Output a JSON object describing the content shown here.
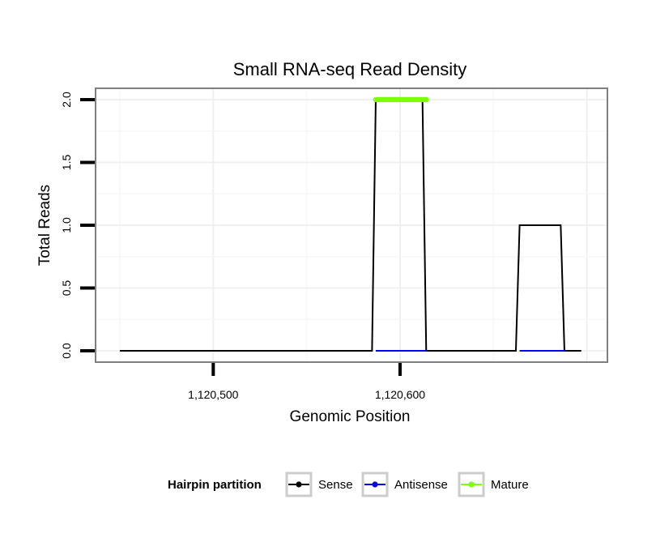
{
  "chart_data": {
    "type": "line",
    "title": "Small RNA-seq Read Density",
    "xlabel": "Genomic Position",
    "ylabel": "Total Reads",
    "xlim": [
      1120437,
      1120711
    ],
    "ylim": [
      -0.09,
      2.09
    ],
    "x_ticks": [
      1120500,
      1120600
    ],
    "x_tick_labels": [
      "1,120,500",
      "1,120,600"
    ],
    "y_ticks": [
      0.0,
      0.5,
      1.0,
      1.5,
      2.0
    ],
    "y_tick_labels": [
      "0.0",
      "0.5",
      "1.0",
      "1.5",
      "2.0"
    ],
    "grid": true,
    "legend": {
      "title": "Hairpin partition",
      "position": "bottom",
      "entries": [
        "Sense",
        "Antisense",
        "Mature"
      ]
    },
    "series": [
      {
        "name": "Sense",
        "color": "#000000",
        "x": [
          1120450,
          1120585,
          1120587,
          1120612,
          1120614,
          1120662,
          1120664,
          1120686,
          1120688,
          1120697
        ],
        "y": [
          0,
          0,
          2,
          2,
          0,
          0,
          1,
          1,
          0,
          0
        ]
      },
      {
        "name": "Antisense",
        "color": "#0000ff",
        "x": [
          1120587,
          1120614,
          1120664,
          1120688
        ],
        "y": [
          0,
          0,
          0,
          0
        ],
        "segments": [
          [
            0,
            1
          ],
          [
            2,
            3
          ]
        ]
      },
      {
        "name": "Mature",
        "color": "#7fff00",
        "x": [
          1120587,
          1120588,
          1120589,
          1120590,
          1120591,
          1120592,
          1120593,
          1120594,
          1120595,
          1120596,
          1120597,
          1120598,
          1120599,
          1120600,
          1120601,
          1120602,
          1120603,
          1120604,
          1120605,
          1120606,
          1120607,
          1120608,
          1120609,
          1120610,
          1120611,
          1120612,
          1120613,
          1120614
        ],
        "y": [
          2,
          2,
          2,
          2,
          2,
          2,
          2,
          2,
          2,
          2,
          2,
          2,
          2,
          2,
          2,
          2,
          2,
          2,
          2,
          2,
          2,
          2,
          2,
          2,
          2,
          2,
          2,
          2
        ]
      }
    ]
  }
}
